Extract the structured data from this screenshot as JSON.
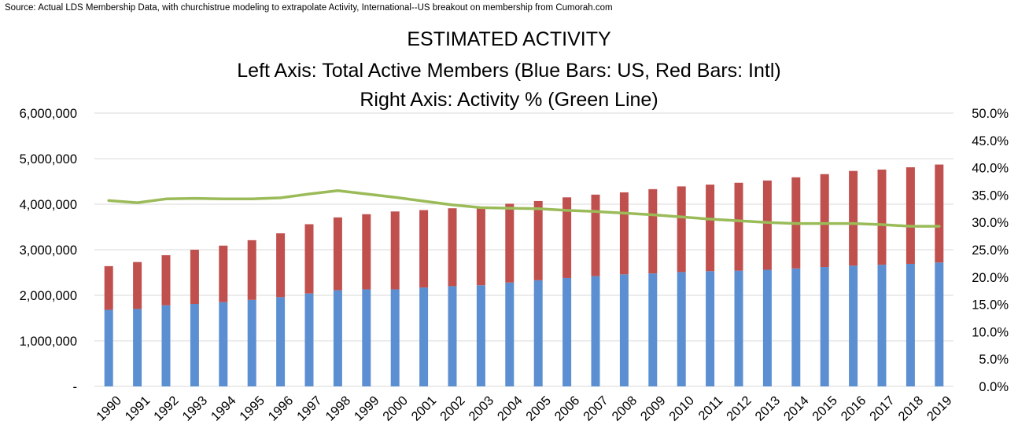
{
  "source": "Source: Actual LDS Membership Data, with churchistrue modeling to extrapolate Activity, International--US breakout on membership from Cumorah.com",
  "chart_data": {
    "type": "bar",
    "title": "ESTIMATED ACTIVITY",
    "subtitle_lines": [
      "Left Axis: Total Active Members (Blue Bars: US, Red Bars: Intl)",
      "Right Axis: Activity % (Green Line)"
    ],
    "categories": [
      "1990",
      "1991",
      "1992",
      "1993",
      "1994",
      "1995",
      "1996",
      "1997",
      "1998",
      "1999",
      "2000",
      "2001",
      "2002",
      "2003",
      "2004",
      "2005",
      "2006",
      "2007",
      "2008",
      "2009",
      "2010",
      "2011",
      "2012",
      "2013",
      "2014",
      "2015",
      "2016",
      "2017",
      "2018",
      "2019"
    ],
    "stacked": true,
    "series": [
      {
        "name": "US",
        "color": "#5B8FD1",
        "axis": "left",
        "values": [
          1680000,
          1700000,
          1780000,
          1810000,
          1850000,
          1900000,
          1960000,
          2040000,
          2110000,
          2130000,
          2130000,
          2170000,
          2200000,
          2220000,
          2280000,
          2330000,
          2380000,
          2420000,
          2460000,
          2480000,
          2510000,
          2530000,
          2540000,
          2560000,
          2590000,
          2620000,
          2650000,
          2670000,
          2690000,
          2720000
        ]
      },
      {
        "name": "Intl",
        "color": "#C0504D",
        "axis": "left",
        "values": [
          960000,
          1030000,
          1100000,
          1190000,
          1240000,
          1310000,
          1400000,
          1520000,
          1600000,
          1650000,
          1710000,
          1700000,
          1710000,
          1720000,
          1730000,
          1740000,
          1770000,
          1790000,
          1800000,
          1850000,
          1880000,
          1900000,
          1930000,
          1960000,
          2000000,
          2040000,
          2080000,
          2090000,
          2120000,
          2150000
        ]
      },
      {
        "name": "Activity %",
        "type": "line",
        "color": "#9BBB59",
        "axis": "right",
        "values": [
          34.0,
          33.6,
          34.3,
          34.4,
          34.3,
          34.3,
          34.5,
          35.2,
          35.8,
          35.2,
          34.6,
          33.9,
          33.2,
          32.7,
          32.6,
          32.5,
          32.2,
          32.0,
          31.7,
          31.4,
          31.0,
          30.6,
          30.3,
          30.0,
          29.8,
          29.8,
          29.8,
          29.6,
          29.3,
          29.3
        ]
      }
    ],
    "left_axis": {
      "ylim": [
        0,
        6000000
      ],
      "ticks": [
        "-",
        "1,000,000",
        "2,000,000",
        "3,000,000",
        "4,000,000",
        "5,000,000",
        "6,000,000"
      ]
    },
    "right_axis": {
      "ylim": [
        0,
        50
      ],
      "ticks": [
        "0.0%",
        "5.0%",
        "10.0%",
        "15.0%",
        "20.0%",
        "25.0%",
        "30.0%",
        "35.0%",
        "40.0%",
        "45.0%",
        "50.0%"
      ]
    },
    "grid": true,
    "legend": "none"
  }
}
